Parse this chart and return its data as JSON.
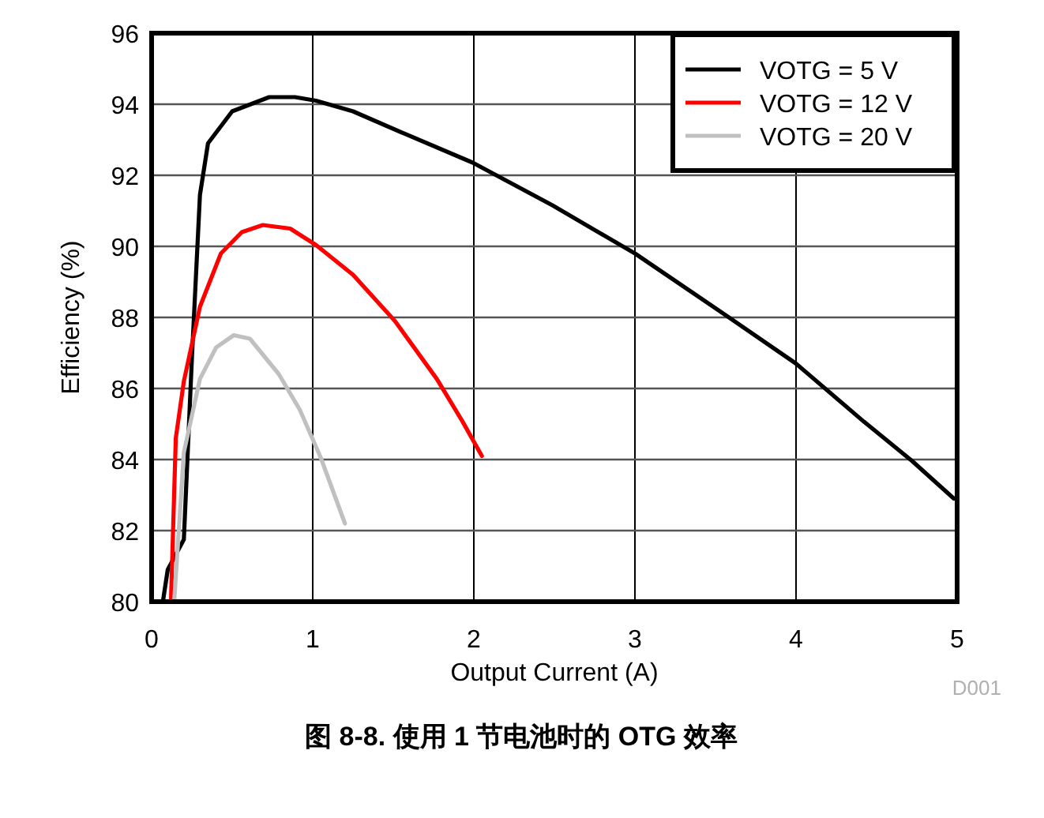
{
  "chart_data": {
    "type": "line",
    "title": "图 8-8. 使用 1 节电池时的 OTG 效率",
    "xlabel": "Output Current (A)",
    "ylabel": "Efficiency (%)",
    "xlim": [
      0,
      5
    ],
    "ylim": [
      80,
      96
    ],
    "xticks": [
      0,
      1,
      2,
      3,
      4,
      5
    ],
    "yticks": [
      80,
      82,
      84,
      86,
      88,
      90,
      92,
      94,
      96
    ],
    "grid": true,
    "legend": "top right",
    "line_style": "solid",
    "marker": "none",
    "annotations": [
      "D001"
    ],
    "series": [
      {
        "name": "VOTG = 5 V",
        "color": "#000000",
        "x": [
          0.07,
          0.1,
          0.2,
          0.25,
          0.3,
          0.35,
          0.5,
          0.73,
          0.89,
          1.02,
          1.25,
          1.58,
          1.97,
          2.0,
          2.49,
          3.0,
          3.57,
          4.0,
          4.42,
          4.72,
          4.98,
          5.0
        ],
        "values": [
          80.0,
          80.9,
          81.75,
          86.85,
          91.45,
          92.9,
          93.8,
          94.2,
          94.2,
          94.1,
          93.8,
          93.15,
          92.4,
          92.34,
          91.15,
          89.8,
          88.04,
          86.7,
          85.07,
          83.96,
          82.9,
          82.9
        ]
      },
      {
        "name": "VOTG = 12 V",
        "color": "#ff0000",
        "x": [
          0.12,
          0.15,
          0.2,
          0.3,
          0.43,
          0.56,
          0.69,
          0.86,
          1.02,
          1.25,
          1.51,
          1.77,
          1.93,
          2.05
        ],
        "values": [
          80.0,
          84.6,
          86.2,
          88.3,
          89.8,
          90.4,
          90.6,
          90.5,
          90.04,
          89.2,
          87.9,
          86.27,
          85.07,
          84.1
        ]
      },
      {
        "name": "VOTG = 20 V",
        "color": "#c0c0c0",
        "x": [
          0.14,
          0.2,
          0.3,
          0.4,
          0.51,
          0.61,
          0.79,
          0.92,
          1.05,
          1.2
        ],
        "values": [
          80.0,
          84.2,
          86.27,
          87.15,
          87.5,
          87.4,
          86.4,
          85.4,
          84.05,
          82.2
        ]
      }
    ]
  }
}
